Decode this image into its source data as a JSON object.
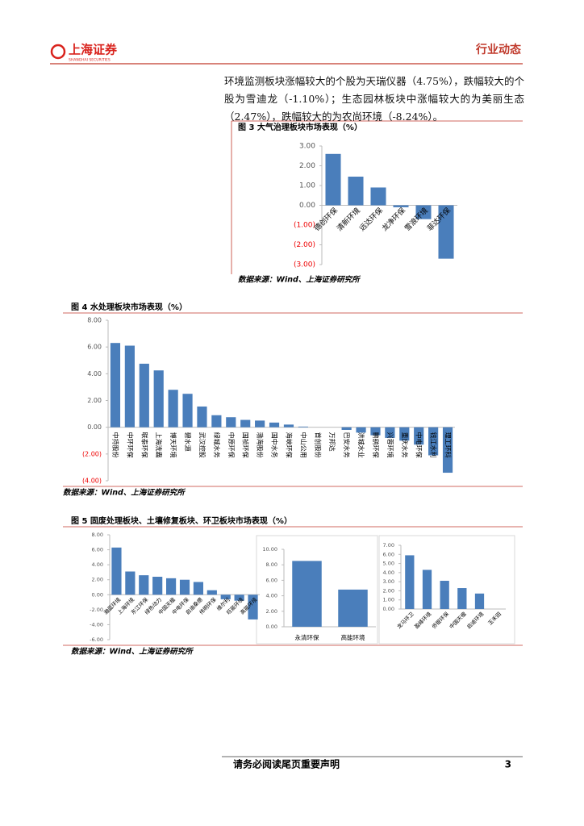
{
  "header": {
    "logo": "上海证券",
    "logo_sub": "SHANGHAI SECURITIES",
    "section": "行业动态"
  },
  "paragraph": "环境监测板块涨幅较大的个股为天瑞仪器（4.75%），跌幅较大的个股为雪迪龙（-1.10%）；生态园林板块中涨幅较大的为美丽生态（2.47%），跌幅较大的为农尚环境（-8.24%）。",
  "chart_data": [
    {
      "type": "bar",
      "title": "图 3 大气治理板块市场表现（%）",
      "source": "数据来源：Wind、上海证券研究所",
      "color": "#4a7ebb",
      "categories": [
        "德创环保",
        "清新环境",
        "远达环保",
        "龙净环保",
        "雪浪环境",
        "菲达环保"
      ],
      "values": [
        2.6,
        1.45,
        0.9,
        -0.1,
        -0.7,
        -2.7
      ],
      "ylim": [
        -3,
        3
      ],
      "yticks": [
        {
          "value": 3,
          "label": "3.00"
        },
        {
          "value": 2,
          "label": "2.00"
        },
        {
          "value": 1,
          "label": "1.00"
        },
        {
          "value": 0,
          "label": "0.00"
        },
        {
          "value": -1,
          "label": "(1.00)"
        },
        {
          "value": -2,
          "label": "(2.00)"
        },
        {
          "value": -3,
          "label": "(3.00)"
        }
      ]
    },
    {
      "type": "bar",
      "title": "图 4 水处理板块市场表现（%）",
      "source": "数据来源：Wind、上海证券研究所",
      "color": "#4a7ebb",
      "categories": [
        "中持股份",
        "中环环保",
        "联泰环保",
        "上海洗霸",
        "博天环境",
        "碧水源",
        "武汉控股",
        "绿城水务",
        "中原环保",
        "国祯环保",
        "渤海股份",
        "国中水务",
        "海峡环保",
        "中山公用",
        "首创股份",
        "万邦达",
        "巴安水务",
        "洪城水业",
        "鹏鹞环保",
        "兴蓉环境",
        "重庆水务",
        "中电环保",
        "钱江水利",
        "理工环科"
      ],
      "values": [
        6.3,
        6.1,
        4.75,
        4.25,
        2.8,
        2.5,
        1.55,
        0.9,
        0.75,
        0.55,
        0.5,
        0.35,
        0.2,
        0.05,
        0,
        0,
        -0.2,
        -0.4,
        -0.6,
        -0.8,
        -1.0,
        -1.3,
        -2.1,
        -3.4
      ],
      "ylim": [
        -4,
        8
      ],
      "yticks": [
        {
          "value": 8,
          "label": "8.00"
        },
        {
          "value": 6,
          "label": "6.00"
        },
        {
          "value": 4,
          "label": "4.00"
        },
        {
          "value": 2,
          "label": "2.00"
        },
        {
          "value": 0,
          "label": "0.00"
        },
        {
          "value": -2,
          "label": "(2.00)"
        },
        {
          "value": -4,
          "label": "(4.00)"
        }
      ]
    },
    {
      "type": "bar",
      "title": "图 5 固废处理板块、土壤修复板块、环卫板块市场表现（%）",
      "source": "数据来源：Wind、上海证券研究所",
      "color": "#4a7ebb",
      "categories": [
        "瀚蓝环境",
        "上海环境",
        "东江环保",
        "绿色动力",
        "中国天楹",
        "中电环保",
        "启迪桑德",
        "伟明环保",
        "维尔利",
        "旺能环境",
        "高能环境"
      ],
      "values": [
        6.3,
        3.1,
        2.6,
        2.4,
        2.2,
        2.0,
        1.7,
        0.6,
        -0.6,
        -0.8,
        -3.3
      ],
      "ylim": [
        -6,
        8
      ],
      "yticks": [
        {
          "value": 8,
          "label": "8.00"
        },
        {
          "value": 6,
          "label": "6.00"
        },
        {
          "value": 4,
          "label": "4.00"
        },
        {
          "value": 2,
          "label": "2.00"
        },
        {
          "value": 0,
          "label": "0.00"
        },
        {
          "value": -2,
          "label": "-2.00"
        },
        {
          "value": -4,
          "label": "-4.00"
        },
        {
          "value": -6,
          "label": "-6.00"
        }
      ]
    },
    {
      "type": "bar",
      "color": "#4a7ebb",
      "categories": [
        "永清环保",
        "高能环境"
      ],
      "values": [
        8.5,
        4.8
      ],
      "ylim": [
        0,
        10
      ],
      "yticks": [
        {
          "value": 10,
          "label": "10.00"
        },
        {
          "value": 8,
          "label": "8.00"
        },
        {
          "value": 6,
          "label": "6.00"
        },
        {
          "value": 4,
          "label": "4.00"
        },
        {
          "value": 2,
          "label": "2.00"
        },
        {
          "value": 0,
          "label": "0.00"
        }
      ]
    },
    {
      "type": "bar",
      "color": "#4a7ebb",
      "categories": [
        "龙马环卫",
        "盈峰环境",
        "侨银环保",
        "中国天楹",
        "启迪环境",
        "玉禾田"
      ],
      "values": [
        5.9,
        4.3,
        3.1,
        2.3,
        1.7,
        0
      ],
      "ylim": [
        0,
        7
      ],
      "yticks": [
        {
          "value": 7,
          "label": "7.00"
        },
        {
          "value": 6,
          "label": "6.00"
        },
        {
          "value": 5,
          "label": "5.00"
        },
        {
          "value": 4,
          "label": "4.00"
        },
        {
          "value": 3,
          "label": "3.00"
        },
        {
          "value": 2,
          "label": "2.00"
        },
        {
          "value": 1,
          "label": "1.00"
        },
        {
          "value": 0,
          "label": "0.00"
        }
      ]
    }
  ],
  "footer": {
    "disclaimer": "请务必阅读尾页重要声明",
    "page": 3
  }
}
